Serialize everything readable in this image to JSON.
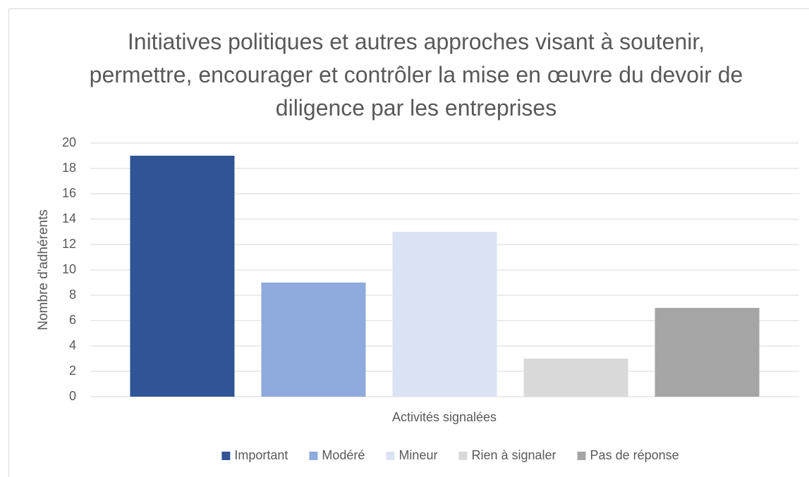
{
  "chart_data": {
    "type": "bar",
    "title": "Initiatives politiques et autres approches visant à soutenir, permettre, encourager et contrôler la mise en œuvre du devoir de diligence par les entreprises",
    "x_label": "Activités signalées",
    "y_label": "Nombre d'adhérents",
    "categories": [
      null
    ],
    "series": [
      {
        "name": "Important",
        "color": "#2f5597",
        "values": [
          19
        ]
      },
      {
        "name": "Modéré",
        "color": "#8faadc",
        "values": [
          9
        ]
      },
      {
        "name": "Mineur",
        "color": "#dae3f3",
        "values": [
          13
        ]
      },
      {
        "name": "Rien à signaler",
        "color": "#d9d9d9",
        "values": [
          3
        ]
      },
      {
        "name": "Pas de réponse",
        "color": "#a5a5a5",
        "values": [
          7
        ]
      }
    ],
    "ylim": [
      0,
      20
    ],
    "yticks": [
      0,
      2,
      4,
      6,
      8,
      10,
      12,
      14,
      16,
      18,
      20
    ],
    "grid": true,
    "legend": "bottom"
  }
}
